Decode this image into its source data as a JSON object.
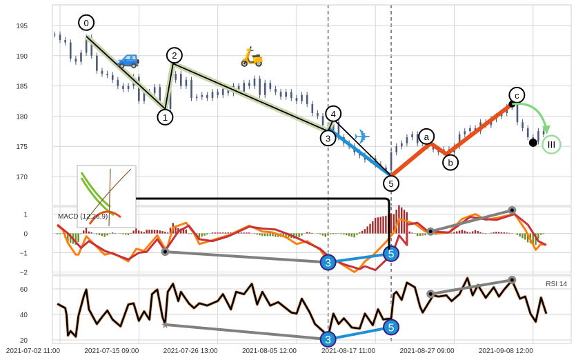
{
  "chart_data": {
    "type": "candlestick",
    "x_axis": {
      "unit": "bar",
      "ticks": [
        {
          "bar": 2,
          "label": "2021-07-02 11:00"
        },
        {
          "bar": 32,
          "label": "2021-07-15 09:00"
        },
        {
          "bar": 62,
          "label": "2021-07-26 13:00"
        },
        {
          "bar": 92,
          "label": "2021-08-05 12:00"
        },
        {
          "bar": 122,
          "label": "2021-08-17 11:00"
        },
        {
          "bar": 152,
          "label": "2021-08-27 09:00"
        },
        {
          "bar": 182,
          "label": "2021-09-08 12:00"
        }
      ],
      "vlines_dashed": [
        104,
        128
      ]
    },
    "price": {
      "ylim": [
        166.5,
        198.5
      ],
      "yticks": [
        170,
        175,
        180,
        185,
        190,
        195
      ],
      "bar_step": 2,
      "closes": [
        193.5,
        192.6,
        192.2,
        189.5,
        189,
        190.5,
        193,
        190,
        187.5,
        187,
        186.8,
        186,
        185,
        184.5,
        185,
        186.5,
        182.5,
        184,
        183.8,
        184.8,
        182.5,
        181.2,
        186,
        187,
        185,
        186,
        183,
        183.2,
        183.5,
        183,
        184,
        183.5,
        184.5,
        183.8,
        185,
        184,
        185.5,
        185,
        186.2,
        183.5,
        185.5,
        184.5,
        184,
        183.2,
        184,
        183,
        182.5,
        183.5,
        182,
        180.5,
        180,
        178.5,
        177.5,
        179,
        176.5,
        175.5,
        175,
        174,
        173.5,
        172.8,
        173,
        172,
        171.5,
        171,
        174,
        175,
        175.5,
        176.5,
        177,
        175.5,
        176,
        175,
        174.5,
        174,
        174.5,
        174,
        175,
        177,
        177.5,
        178,
        177.5,
        179,
        178.5,
        179.5,
        180,
        180.5,
        181.5,
        182,
        179,
        178,
        176.5,
        175.8,
        177.5,
        177
      ],
      "candle_color": "#4a5a7a",
      "impulse_waves": [
        {
          "label": "0",
          "bar": 12,
          "price": 193.2
        },
        {
          "label": "1",
          "bar": 42,
          "price": 181.2
        },
        {
          "label": "2",
          "bar": 45,
          "price": 188.7
        },
        {
          "label": "3",
          "bar": 104,
          "price": 177.5
        },
        {
          "label": "4",
          "bar": 106,
          "price": 179.5
        },
        {
          "label": "5",
          "bar": 128,
          "price": 170.1
        }
      ],
      "corrective_waves": [
        {
          "label": "a",
          "bar": 143,
          "price": 175.5
        },
        {
          "label": "b",
          "bar": 149,
          "price": 173.7
        },
        {
          "label": "c",
          "bar": 174,
          "price": 182.0
        }
      ],
      "projection": {
        "dot_bar": 182,
        "dot_price": 175.6,
        "label": "III",
        "label_bar": 189,
        "label_price": 175.3,
        "arrow_end_bar": 187,
        "arrow_end_price": 177.2
      },
      "icons": [
        {
          "name": "car-icon",
          "glyph": "🚙",
          "bar": 28,
          "price": 189.7
        },
        {
          "name": "scooter-icon",
          "glyph": "🛵",
          "bar": 75,
          "price": 190.0
        },
        {
          "name": "airplane-icon",
          "glyph": "✈",
          "bar": 117,
          "price": 176.5
        }
      ],
      "colors": {
        "impulse_band": "#c9d6ae",
        "wave3_5": "#1f8fd6",
        "abc": "#e8501a",
        "arrow": "#7fd67f"
      }
    },
    "macd": {
      "label": "MACD (12,26,9)",
      "ylim": [
        -2.2,
        1.4
      ],
      "yticks": [
        1,
        0,
        -1,
        -2
      ],
      "macd_line": [
        [
          1,
          0.4
        ],
        [
          3,
          0.2
        ],
        [
          5,
          -0.5
        ],
        [
          8,
          -1.1
        ],
        [
          9,
          -1.1
        ],
        [
          12,
          -0.15
        ],
        [
          16,
          -0.7
        ],
        [
          19,
          -1.1
        ],
        [
          22,
          -1.0
        ],
        [
          26,
          -1.3
        ],
        [
          28,
          -1.45
        ],
        [
          31,
          -0.8
        ],
        [
          34,
          -0.9
        ],
        [
          39,
          -0.1
        ],
        [
          42,
          -0.8
        ],
        [
          43,
          -0.65
        ],
        [
          45,
          0.3
        ],
        [
          50,
          0.55
        ],
        [
          53,
          0.0
        ],
        [
          55,
          -0.55
        ],
        [
          60,
          -0.35
        ],
        [
          66,
          -0.1
        ],
        [
          74,
          0.4
        ],
        [
          79,
          0.1
        ],
        [
          83,
          0.05
        ],
        [
          88,
          -0.2
        ],
        [
          92,
          -0.55
        ],
        [
          96,
          -0.4
        ],
        [
          101,
          -0.85
        ],
        [
          103,
          -1.25
        ],
        [
          108,
          -1.5
        ],
        [
          114,
          -2.0
        ],
        [
          116,
          -1.8
        ],
        [
          118,
          -1.45
        ],
        [
          121,
          -1.15
        ],
        [
          126,
          -0.45
        ],
        [
          129,
          0.05
        ],
        [
          131,
          0.75
        ],
        [
          137,
          0.5
        ],
        [
          141,
          0.1
        ],
        [
          145,
          0.0
        ],
        [
          150,
          0.05
        ],
        [
          155,
          0.75
        ],
        [
          160,
          1.0
        ],
        [
          164,
          0.7
        ],
        [
          168,
          0.8
        ],
        [
          175,
          1.0
        ],
        [
          179,
          0.2
        ],
        [
          183,
          -0.85
        ],
        [
          185,
          -0.55
        ],
        [
          187,
          -0.6
        ]
      ],
      "signal_line": [
        [
          1,
          0.45
        ],
        [
          5,
          0.0
        ],
        [
          9,
          -0.6
        ],
        [
          10,
          -0.75
        ],
        [
          13,
          -0.4
        ],
        [
          19,
          -0.9
        ],
        [
          22,
          -1.05
        ],
        [
          28,
          -1.35
        ],
        [
          32,
          -1.0
        ],
        [
          35,
          -0.95
        ],
        [
          39,
          -0.3
        ],
        [
          42,
          -0.9
        ],
        [
          43,
          -0.7
        ],
        [
          47,
          0.1
        ],
        [
          51,
          0.4
        ],
        [
          55,
          -0.3
        ],
        [
          60,
          -0.4
        ],
        [
          66,
          -0.15
        ],
        [
          74,
          0.35
        ],
        [
          79,
          0.25
        ],
        [
          84,
          0.2
        ],
        [
          89,
          -0.05
        ],
        [
          94,
          -0.35
        ],
        [
          101,
          -0.8
        ],
        [
          105,
          -1.3
        ],
        [
          110,
          -1.6
        ],
        [
          116,
          -1.85
        ],
        [
          118,
          -1.7
        ],
        [
          122,
          -1.9
        ],
        [
          122,
          -1.9
        ],
        [
          128,
          -1.25
        ],
        [
          127,
          -1.25
        ],
        [
          134,
          -0.6
        ],
        [
          131,
          -0.1
        ],
        [
          134,
          0.45
        ],
        [
          138,
          0.55
        ],
        [
          142,
          0.1
        ],
        [
          150,
          0.05
        ],
        [
          158,
          0.85
        ],
        [
          163,
          0.75
        ],
        [
          168,
          0.7
        ],
        [
          175,
          1.0
        ],
        [
          180,
          0.45
        ],
        [
          184,
          -0.4
        ],
        [
          187,
          -0.6
        ]
      ],
      "colors": {
        "macd": "#ff7f0e",
        "signal": "#c8323c",
        "hist_pos": "#a52a2a",
        "hist_neg": "#6b8e23"
      },
      "divergences": [
        {
          "from": {
            "bar": 42,
            "value": -0.95
          },
          "to": {
            "bar": 104,
            "value": -1.5
          },
          "color": "#808080"
        },
        {
          "from": {
            "bar": 104,
            "value": -1.5
          },
          "to": {
            "bar": 128,
            "value": -1.05
          },
          "color": "#1f8fd6"
        },
        {
          "from": {
            "bar": 143,
            "value": 0.1
          },
          "to": {
            "bar": 174,
            "value": 1.2
          },
          "color": "#808080"
        }
      ],
      "markers": [
        {
          "label": "3",
          "bar": 104,
          "value": -1.5
        },
        {
          "label": "5",
          "bar": 128,
          "value": -1.05
        }
      ]
    },
    "rsi": {
      "label": "RSI 14",
      "ylim": [
        18,
        70
      ],
      "yticks": [
        60,
        40,
        20
      ],
      "line": [
        [
          1,
          48.3
        ],
        [
          4,
          45
        ],
        [
          4.5,
          39.7
        ],
        [
          5,
          23.5
        ],
        [
          6,
          27
        ],
        [
          8,
          22.6
        ],
        [
          9,
          38.8
        ],
        [
          11,
          54
        ],
        [
          12,
          59.5
        ],
        [
          13,
          44
        ],
        [
          16,
          32.5
        ],
        [
          18,
          38
        ],
        [
          20,
          43
        ],
        [
          22,
          36
        ],
        [
          25,
          30.7
        ],
        [
          28,
          47.8
        ],
        [
          30,
          48.7
        ],
        [
          32,
          35
        ],
        [
          34,
          42.4
        ],
        [
          36,
          36
        ],
        [
          37,
          55.9
        ],
        [
          39,
          59.5
        ],
        [
          41,
          37.9
        ],
        [
          42,
          32.5
        ],
        [
          43,
          57.7
        ],
        [
          45,
          64
        ],
        [
          47,
          50.5
        ],
        [
          48,
          57.7
        ],
        [
          51,
          48.7
        ],
        [
          53,
          45
        ],
        [
          55,
          48.7
        ],
        [
          58,
          47
        ],
        [
          62,
          50.5
        ],
        [
          64,
          55.9
        ],
        [
          67,
          44
        ],
        [
          69,
          57.7
        ],
        [
          72,
          55.9
        ],
        [
          75,
          64
        ],
        [
          77,
          47.8
        ],
        [
          79,
          57.7
        ],
        [
          82,
          46.9
        ],
        [
          85,
          49.6
        ],
        [
          90,
          41.5
        ],
        [
          92,
          40.6
        ],
        [
          94,
          52.3
        ],
        [
          97,
          41.5
        ],
        [
          99,
          32.5
        ],
        [
          102,
          27
        ],
        [
          104,
          22.6
        ],
        [
          106,
          40.6
        ],
        [
          108,
          32.5
        ],
        [
          110,
          37
        ],
        [
          113,
          29.8
        ],
        [
          116,
          28.9
        ],
        [
          118,
          40.6
        ],
        [
          121,
          31.6
        ],
        [
          123,
          44
        ],
        [
          125,
          36
        ],
        [
          128,
          37
        ],
        [
          129,
          55.9
        ],
        [
          130,
          57.7
        ],
        [
          132,
          51.4
        ],
        [
          134,
          64.9
        ],
        [
          137,
          61.3
        ],
        [
          139,
          46
        ],
        [
          140,
          41.5
        ],
        [
          144,
          55
        ],
        [
          146,
          54
        ],
        [
          149,
          55
        ],
        [
          151,
          50.5
        ],
        [
          154,
          55.9
        ],
        [
          157,
          68.5
        ],
        [
          159,
          55
        ],
        [
          161,
          63
        ],
        [
          164,
          53
        ],
        [
          167,
          61.3
        ],
        [
          169,
          54
        ],
        [
          171,
          59.5
        ],
        [
          174,
          66.7
        ],
        [
          177,
          52.3
        ],
        [
          179,
          54
        ],
        [
          181,
          40.6
        ],
        [
          183,
          34.3
        ],
        [
          185,
          53.2
        ],
        [
          187,
          40.6
        ]
      ],
      "colors": {
        "line": "#000000",
        "halo": "#f4b183"
      },
      "divergences": [
        {
          "from": {
            "bar": 42,
            "value": 32
          },
          "to": {
            "bar": 104,
            "value": 20.5
          },
          "color": "#808080"
        },
        {
          "from": {
            "bar": 104,
            "value": 20.5
          },
          "to": {
            "bar": 128,
            "value": 30
          },
          "color": "#1f8fd6"
        },
        {
          "from": {
            "bar": 143,
            "value": 56
          },
          "to": {
            "bar": 174,
            "value": 67
          },
          "color": "#808080"
        }
      ],
      "markers": [
        {
          "label": "3",
          "bar": 104,
          "value": 20.5
        },
        {
          "label": "5",
          "bar": 128,
          "value": 30
        }
      ]
    }
  }
}
